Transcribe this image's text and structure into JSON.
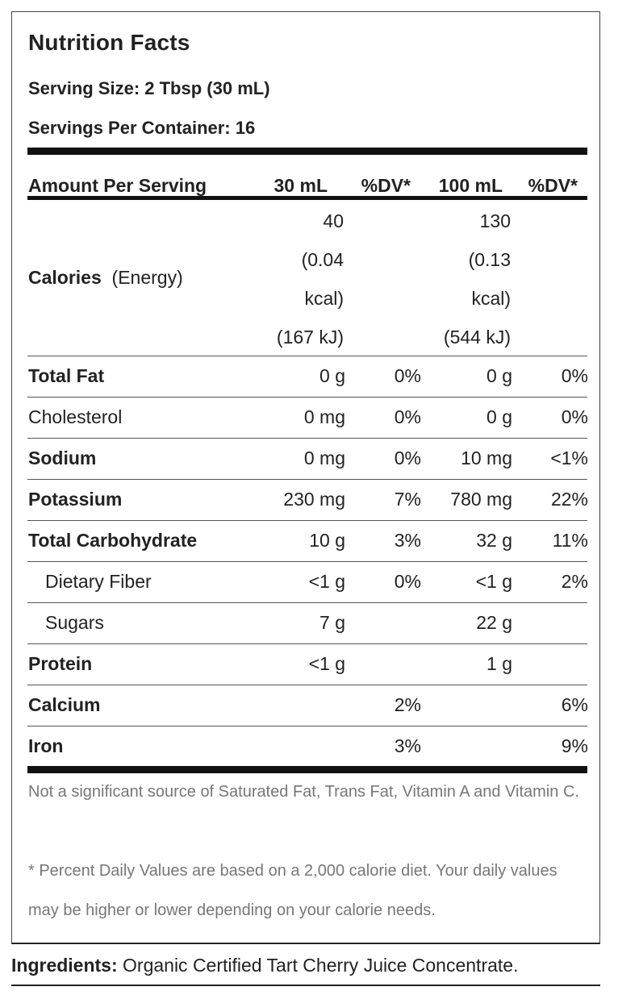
{
  "label": {
    "title": "Nutrition Facts",
    "serving_size": "Serving Size: 2 Tbsp (30 mL)",
    "servings_per_container": "Servings Per Container: 16",
    "header": {
      "amount_per_serving": "Amount Per Serving",
      "col1": "30 mL",
      "col2": "%DV*",
      "col3": "100 mL",
      "col4": "%DV*"
    },
    "calories": {
      "label": "Calories",
      "sublabel": "(Energy)",
      "col1_lines": [
        "40",
        "(0.04",
        "kcal)",
        "(167 kJ)"
      ],
      "col3_lines": [
        "130",
        "(0.13",
        "kcal)",
        "(544 kJ)"
      ]
    },
    "rows": [
      {
        "name": "Total Fat",
        "v1": "0 g",
        "d1": "0%",
        "v2": "0 g",
        "d2": "0%"
      },
      {
        "name": "Cholesterol",
        "v1": "0 mg",
        "d1": "0%",
        "v2": "0 g",
        "d2": "0%"
      },
      {
        "name": "Sodium",
        "v1": "0 mg",
        "d1": "0%",
        "v2": "10 mg",
        "d2": "<1%"
      },
      {
        "name": "Potassium",
        "v1": "230 mg",
        "d1": "7%",
        "v2": "780 mg",
        "d2": "22%"
      },
      {
        "name": "Total Carbohydrate",
        "v1": "10 g",
        "d1": "3%",
        "v2": "32 g",
        "d2": "11%"
      },
      {
        "name": "Dietary Fiber",
        "v1": "<1 g",
        "d1": "0%",
        "v2": "<1 g",
        "d2": "2%"
      },
      {
        "name": "Sugars",
        "v1": "7 g",
        "d1": "",
        "v2": "22 g",
        "d2": ""
      },
      {
        "name": "Protein",
        "v1": "<1 g",
        "d1": "",
        "v2": "1 g",
        "d2": ""
      },
      {
        "name": "Calcium",
        "v1": "",
        "d1": "2%",
        "v2": "",
        "d2": "6%"
      },
      {
        "name": "Iron",
        "v1": "",
        "d1": "3%",
        "v2": "",
        "d2": "9%"
      }
    ],
    "footnote_1": "Not a significant source of Saturated Fat, Trans Fat, Vitamin A and Vitamin C.",
    "footnote_2": "* Percent Daily Values are based on a 2,000 calorie diet. Your daily values may be higher or lower depending on your calorie needs."
  },
  "ingredients": {
    "label": "Ingredients:",
    "text": " Organic Certified Tart Cherry Juice Concentrate."
  }
}
